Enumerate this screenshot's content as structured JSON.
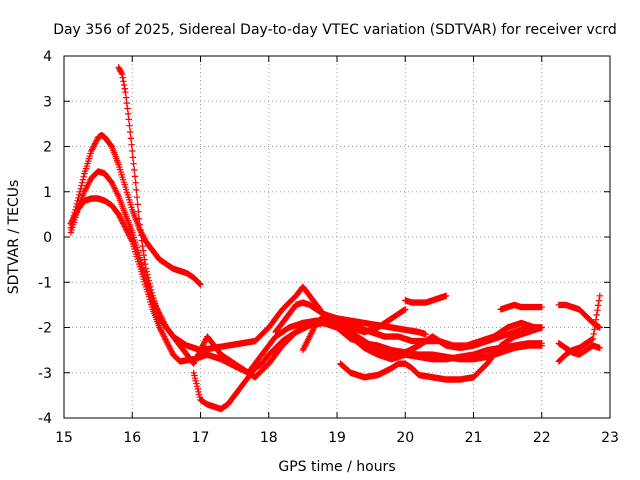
{
  "chart_data": {
    "type": "scatter",
    "title": "Day 356 of 2025, Sidereal Day-to-day VTEC variation (SDTVAR) for receiver vcrd",
    "xlabel": "GPS time / hours",
    "ylabel": "SDTVAR / TECUs",
    "xlim": [
      15,
      23
    ],
    "ylim": [
      -4,
      4
    ],
    "xticks": [
      15,
      16,
      17,
      18,
      19,
      20,
      21,
      22,
      23
    ],
    "yticks": [
      -4,
      -3,
      -2,
      -1,
      0,
      1,
      2,
      3,
      4
    ],
    "xtick_labels": [
      "15",
      "16",
      "17",
      "18",
      "19",
      "20",
      "21",
      "22",
      "23"
    ],
    "ytick_labels": [
      "-4",
      "-3",
      "-2",
      "-1",
      "0",
      "1",
      "2",
      "3",
      "4"
    ],
    "grid": true,
    "marker": "+",
    "color": "#ff0000",
    "series": [
      {
        "name": "track-1",
        "points": [
          [
            15.1,
            0.2
          ],
          [
            15.2,
            0.8
          ],
          [
            15.3,
            1.4
          ],
          [
            15.4,
            1.9
          ],
          [
            15.5,
            2.2
          ],
          [
            15.55,
            2.25
          ],
          [
            15.6,
            2.2
          ],
          [
            15.7,
            2.0
          ],
          [
            15.8,
            1.6
          ],
          [
            15.9,
            1.1
          ],
          [
            16.0,
            0.6
          ],
          [
            16.1,
            0.2
          ],
          [
            16.2,
            -0.1
          ],
          [
            16.3,
            -0.3
          ],
          [
            16.4,
            -0.5
          ],
          [
            16.5,
            -0.6
          ],
          [
            16.6,
            -0.7
          ],
          [
            16.7,
            -0.75
          ],
          [
            16.8,
            -0.8
          ],
          [
            16.9,
            -0.9
          ],
          [
            17.0,
            -1.05
          ]
        ]
      },
      {
        "name": "track-2",
        "points": [
          [
            15.1,
            0.1
          ],
          [
            15.2,
            0.6
          ],
          [
            15.3,
            1.0
          ],
          [
            15.4,
            1.3
          ],
          [
            15.5,
            1.45
          ],
          [
            15.6,
            1.4
          ],
          [
            15.7,
            1.2
          ],
          [
            15.8,
            0.9
          ],
          [
            15.9,
            0.5
          ],
          [
            16.0,
            0.1
          ],
          [
            16.1,
            -0.4
          ],
          [
            16.2,
            -0.9
          ],
          [
            16.3,
            -1.4
          ],
          [
            16.4,
            -1.7
          ],
          [
            16.5,
            -2.0
          ],
          [
            16.6,
            -2.2
          ],
          [
            16.8,
            -2.4
          ],
          [
            17.0,
            -2.5
          ],
          [
            17.2,
            -2.45
          ],
          [
            17.4,
            -2.4
          ],
          [
            17.6,
            -2.35
          ],
          [
            17.8,
            -2.3
          ],
          [
            18.0,
            -2.0
          ],
          [
            18.2,
            -1.6
          ],
          [
            18.4,
            -1.3
          ],
          [
            18.5,
            -1.1
          ],
          [
            18.6,
            -1.3
          ],
          [
            18.8,
            -1.7
          ],
          [
            19.0,
            -1.9
          ],
          [
            19.2,
            -2.0
          ],
          [
            19.4,
            -2.1
          ],
          [
            19.6,
            -2.0
          ],
          [
            19.8,
            -1.8
          ],
          [
            20.0,
            -1.6
          ]
        ]
      },
      {
        "name": "track-3",
        "points": [
          [
            15.1,
            0.3
          ],
          [
            15.2,
            0.6
          ],
          [
            15.3,
            0.8
          ],
          [
            15.4,
            0.85
          ],
          [
            15.5,
            0.85
          ],
          [
            15.6,
            0.8
          ],
          [
            15.7,
            0.7
          ],
          [
            15.8,
            0.5
          ],
          [
            15.9,
            0.2
          ],
          [
            16.0,
            -0.1
          ],
          [
            16.1,
            -0.6
          ],
          [
            16.2,
            -1.1
          ],
          [
            16.3,
            -1.6
          ],
          [
            16.4,
            -2.0
          ],
          [
            16.5,
            -2.3
          ],
          [
            16.6,
            -2.6
          ],
          [
            16.7,
            -2.75
          ],
          [
            16.9,
            -2.7
          ],
          [
            17.1,
            -2.6
          ],
          [
            17.3,
            -2.7
          ],
          [
            17.5,
            -2.85
          ],
          [
            17.7,
            -3.0
          ],
          [
            17.8,
            -3.1
          ],
          [
            18.0,
            -2.8
          ],
          [
            18.2,
            -2.4
          ],
          [
            18.4,
            -2.1
          ],
          [
            18.6,
            -1.95
          ],
          [
            18.8,
            -1.9
          ],
          [
            19.0,
            -1.95
          ],
          [
            19.2,
            -2.1
          ],
          [
            19.4,
            -2.3
          ],
          [
            19.6,
            -2.5
          ],
          [
            19.8,
            -2.6
          ],
          [
            20.0,
            -2.55
          ],
          [
            20.2,
            -2.4
          ],
          [
            20.4,
            -2.2
          ],
          [
            20.6,
            -2.4
          ],
          [
            20.8,
            -2.45
          ],
          [
            21.0,
            -2.4
          ],
          [
            21.2,
            -2.3
          ],
          [
            21.4,
            -2.2
          ],
          [
            21.6,
            -2.1
          ],
          [
            21.8,
            -2.0
          ],
          [
            22.0,
            -2.0
          ]
        ]
      },
      {
        "name": "track-4",
        "points": [
          [
            15.8,
            3.75
          ],
          [
            15.85,
            3.6
          ],
          [
            15.9,
            3.2
          ],
          [
            15.95,
            2.6
          ],
          [
            16.0,
            1.9
          ],
          [
            16.05,
            1.2
          ],
          [
            16.1,
            0.4
          ],
          [
            16.15,
            -0.2
          ],
          [
            16.2,
            -0.7
          ],
          [
            16.3,
            -1.3
          ],
          [
            16.4,
            -1.8
          ],
          [
            16.5,
            -2.0
          ],
          [
            16.6,
            -2.2
          ],
          [
            16.7,
            -2.4
          ],
          [
            16.8,
            -2.6
          ],
          [
            16.9,
            -2.8
          ],
          [
            17.0,
            -2.5
          ],
          [
            17.1,
            -2.2
          ],
          [
            17.2,
            -2.4
          ],
          [
            17.3,
            -2.6
          ],
          [
            17.5,
            -2.8
          ],
          [
            17.7,
            -3.0
          ],
          [
            17.9,
            -2.6
          ],
          [
            18.1,
            -2.2
          ],
          [
            18.3,
            -2.0
          ],
          [
            18.5,
            -1.9
          ],
          [
            18.7,
            -1.85
          ],
          [
            18.9,
            -1.85
          ],
          [
            19.1,
            -1.9
          ],
          [
            19.3,
            -2.0
          ],
          [
            19.5,
            -2.1
          ],
          [
            19.7,
            -2.2
          ],
          [
            19.9,
            -2.2
          ],
          [
            20.1,
            -2.3
          ],
          [
            20.3,
            -2.3
          ],
          [
            20.5,
            -2.3
          ],
          [
            20.7,
            -2.4
          ],
          [
            20.9,
            -2.4
          ],
          [
            21.1,
            -2.3
          ],
          [
            21.3,
            -2.2
          ],
          [
            21.5,
            -2.0
          ],
          [
            21.7,
            -1.9
          ],
          [
            21.9,
            -2.0
          ],
          [
            22.0,
            -2.0
          ]
        ]
      },
      {
        "name": "track-5",
        "points": [
          [
            16.9,
            -3.0
          ],
          [
            16.95,
            -3.3
          ],
          [
            17.0,
            -3.6
          ],
          [
            17.1,
            -3.7
          ],
          [
            17.2,
            -3.75
          ],
          [
            17.3,
            -3.8
          ],
          [
            17.4,
            -3.7
          ],
          [
            17.5,
            -3.5
          ],
          [
            17.6,
            -3.3
          ],
          [
            17.7,
            -3.1
          ],
          [
            17.8,
            -2.9
          ],
          [
            17.9,
            -2.8
          ],
          [
            18.0,
            -2.6
          ],
          [
            18.2,
            -2.3
          ],
          [
            18.4,
            -2.1
          ],
          [
            18.6,
            -1.95
          ],
          [
            18.8,
            -1.9
          ],
          [
            19.0,
            -2.0
          ],
          [
            19.2,
            -2.2
          ],
          [
            19.4,
            -2.45
          ],
          [
            19.6,
            -2.6
          ],
          [
            19.8,
            -2.7
          ],
          [
            20.0,
            -2.6
          ],
          [
            20.2,
            -2.65
          ],
          [
            20.4,
            -2.7
          ],
          [
            20.6,
            -2.7
          ],
          [
            20.8,
            -2.65
          ],
          [
            21.0,
            -2.6
          ],
          [
            21.2,
            -2.5
          ],
          [
            21.4,
            -2.45
          ],
          [
            21.6,
            -2.4
          ],
          [
            21.8,
            -2.35
          ],
          [
            22.0,
            -2.35
          ]
        ]
      },
      {
        "name": "track-6",
        "points": [
          [
            18.1,
            -2.1
          ],
          [
            18.2,
            -1.9
          ],
          [
            18.3,
            -1.7
          ],
          [
            18.4,
            -1.5
          ],
          [
            18.5,
            -1.45
          ],
          [
            18.6,
            -1.5
          ],
          [
            18.7,
            -1.6
          ],
          [
            18.8,
            -1.7
          ],
          [
            19.0,
            -1.8
          ],
          [
            19.2,
            -1.85
          ],
          [
            19.4,
            -1.9
          ],
          [
            19.6,
            -1.95
          ],
          [
            19.8,
            -2.0
          ],
          [
            20.0,
            -2.05
          ],
          [
            20.2,
            -2.1
          ],
          [
            20.3,
            -2.15
          ]
        ]
      },
      {
        "name": "track-7",
        "points": [
          [
            18.5,
            -2.5
          ],
          [
            18.6,
            -2.2
          ],
          [
            18.7,
            -1.9
          ],
          [
            18.8,
            -1.75
          ],
          [
            18.9,
            -1.8
          ],
          [
            19.0,
            -2.0
          ],
          [
            19.2,
            -2.25
          ],
          [
            19.4,
            -2.35
          ],
          [
            19.6,
            -2.4
          ],
          [
            19.8,
            -2.5
          ],
          [
            20.0,
            -2.55
          ],
          [
            20.2,
            -2.6
          ],
          [
            20.4,
            -2.6
          ],
          [
            20.6,
            -2.65
          ],
          [
            20.8,
            -2.7
          ],
          [
            21.0,
            -2.7
          ],
          [
            21.2,
            -2.65
          ],
          [
            21.4,
            -2.55
          ],
          [
            21.6,
            -2.45
          ],
          [
            21.8,
            -2.4
          ],
          [
            22.0,
            -2.4
          ]
        ]
      },
      {
        "name": "track-8",
        "points": [
          [
            19.05,
            -2.8
          ],
          [
            19.2,
            -3.0
          ],
          [
            19.4,
            -3.1
          ],
          [
            19.6,
            -3.05
          ],
          [
            19.8,
            -2.9
          ],
          [
            19.9,
            -2.8
          ],
          [
            20.0,
            -2.8
          ],
          [
            20.1,
            -2.9
          ],
          [
            20.2,
            -3.05
          ],
          [
            20.4,
            -3.1
          ],
          [
            20.6,
            -3.15
          ],
          [
            20.8,
            -3.15
          ],
          [
            21.0,
            -3.1
          ],
          [
            21.1,
            -2.95
          ],
          [
            21.2,
            -2.8
          ],
          [
            21.3,
            -2.6
          ],
          [
            21.4,
            -2.4
          ],
          [
            21.5,
            -2.3
          ],
          [
            21.6,
            -2.2
          ],
          [
            21.8,
            -2.1
          ],
          [
            22.0,
            -2.0
          ]
        ]
      },
      {
        "name": "track-9",
        "points": [
          [
            20.0,
            -1.4
          ],
          [
            20.1,
            -1.45
          ],
          [
            20.2,
            -1.45
          ],
          [
            20.3,
            -1.45
          ],
          [
            20.4,
            -1.4
          ],
          [
            20.5,
            -1.35
          ],
          [
            20.6,
            -1.3
          ]
        ]
      },
      {
        "name": "track-10",
        "points": [
          [
            21.4,
            -1.6
          ],
          [
            21.5,
            -1.55
          ],
          [
            21.6,
            -1.5
          ],
          [
            21.7,
            -1.55
          ],
          [
            21.8,
            -1.55
          ],
          [
            21.9,
            -1.55
          ],
          [
            22.0,
            -1.55
          ]
        ]
      },
      {
        "name": "track-11",
        "points": [
          [
            22.25,
            -1.5
          ],
          [
            22.35,
            -1.5
          ],
          [
            22.45,
            -1.55
          ],
          [
            22.55,
            -1.6
          ],
          [
            22.65,
            -1.75
          ],
          [
            22.75,
            -1.9
          ],
          [
            22.85,
            -2.0
          ]
        ]
      },
      {
        "name": "track-12",
        "points": [
          [
            22.25,
            -2.75
          ],
          [
            22.35,
            -2.6
          ],
          [
            22.45,
            -2.5
          ],
          [
            22.55,
            -2.45
          ],
          [
            22.65,
            -2.35
          ],
          [
            22.75,
            -2.25
          ],
          [
            22.85,
            -1.3
          ]
        ]
      },
      {
        "name": "track-13",
        "points": [
          [
            22.25,
            -2.35
          ],
          [
            22.35,
            -2.45
          ],
          [
            22.45,
            -2.55
          ],
          [
            22.55,
            -2.6
          ],
          [
            22.65,
            -2.5
          ],
          [
            22.75,
            -2.4
          ],
          [
            22.85,
            -2.45
          ]
        ]
      }
    ]
  }
}
